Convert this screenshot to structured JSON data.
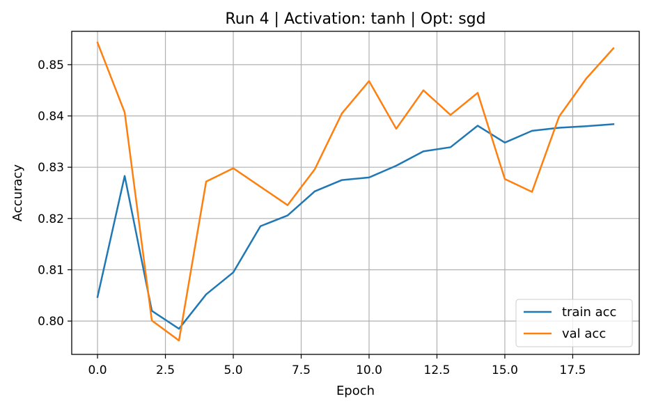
{
  "chart_data": {
    "type": "line",
    "title": "Run 4 | Activation: tanh | Opt: sgd",
    "xlabel": "Epoch",
    "ylabel": "Accuracy",
    "xlim": [
      -0.95,
      19.95
    ],
    "ylim": [
      0.7935,
      0.8565
    ],
    "x_ticks": [
      0.0,
      2.5,
      5.0,
      7.5,
      10.0,
      12.5,
      15.0,
      17.5
    ],
    "x_tick_labels": [
      "0.0",
      "2.5",
      "5.0",
      "7.5",
      "10.0",
      "12.5",
      "15.0",
      "17.5"
    ],
    "y_ticks": [
      0.8,
      0.81,
      0.82,
      0.83,
      0.84,
      0.85
    ],
    "y_tick_labels": [
      "0.80",
      "0.81",
      "0.82",
      "0.83",
      "0.84",
      "0.85"
    ],
    "grid": true,
    "legend_position": "lower-right",
    "x": [
      0,
      1,
      2,
      3,
      4,
      5,
      6,
      7,
      8,
      9,
      10,
      11,
      12,
      13,
      14,
      15,
      16,
      17,
      18,
      19
    ],
    "series": [
      {
        "name": "train acc",
        "color": "#1f77b4",
        "values": [
          0.8047,
          0.8283,
          0.802,
          0.7985,
          0.8052,
          0.8095,
          0.8185,
          0.8206,
          0.8253,
          0.8275,
          0.828,
          0.8303,
          0.8331,
          0.8339,
          0.8381,
          0.8348,
          0.8371,
          0.8377,
          0.838,
          0.8384
        ]
      },
      {
        "name": "val acc",
        "color": "#ff7f0e",
        "values": [
          0.8543,
          0.8407,
          0.8001,
          0.7962,
          0.8272,
          0.8298,
          0.8262,
          0.8226,
          0.8296,
          0.8405,
          0.8468,
          0.8375,
          0.845,
          0.8402,
          0.8445,
          0.8277,
          0.8252,
          0.8399,
          0.8473,
          0.8532
        ]
      }
    ]
  }
}
